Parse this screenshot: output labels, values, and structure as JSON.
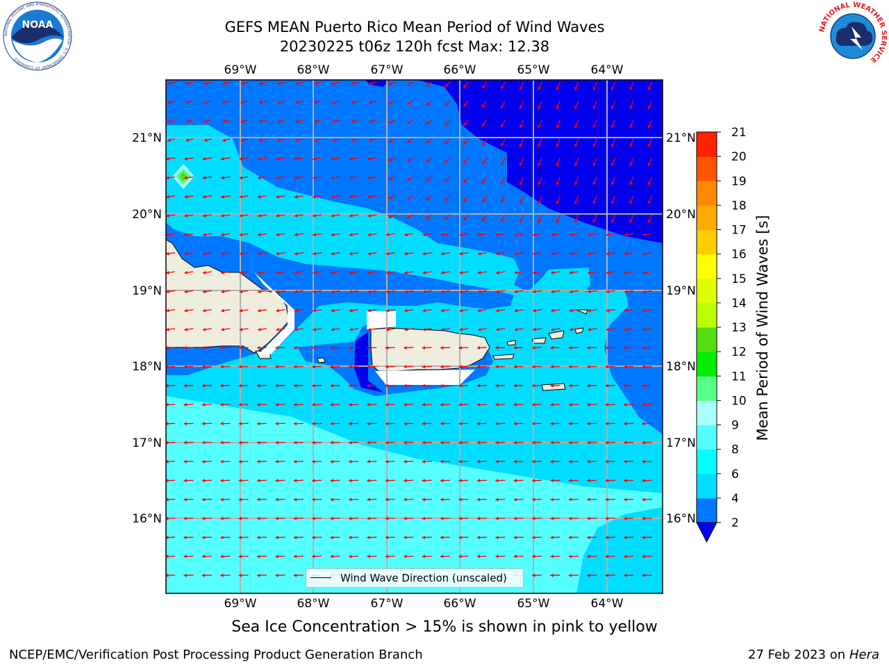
{
  "header": {
    "title_line1": "GEFS MEAN Puerto Rico Mean Period of Wind Waves",
    "title_line2": "20230225 t06z 120h fcst   Max: 12.38"
  },
  "logos": {
    "noaa_text": "NOAA",
    "noaa_ring_text": "NATIONAL OCEANIC AND ATMOSPHERIC ADMINISTRATION · U.S. DEPARTMENT OF COMMERCE",
    "nws_ring_text": "NATIONAL WEATHER SERVICE"
  },
  "map": {
    "lon_labels": [
      "69°W",
      "68°W",
      "67°W",
      "66°W",
      "65°W",
      "64°W"
    ],
    "lat_labels": [
      "21°N",
      "20°N",
      "19°N",
      "18°N",
      "17°N",
      "16°N"
    ],
    "legend_label": "Wind Wave Direction (unscaled)",
    "arrow_color": "#ff0000",
    "land_color": "#efedde",
    "gridline_color": "#b0b0b0"
  },
  "colorbar": {
    "title": "Mean Period of Wind Waves [s]",
    "ticks": [
      "2",
      "4",
      "6",
      "8",
      "9",
      "10",
      "11",
      "12",
      "13",
      "14",
      "15",
      "16",
      "17",
      "18",
      "19",
      "20",
      "21"
    ],
    "colors": [
      "#0000ee",
      "#0077ff",
      "#00ddff",
      "#00ffff",
      "#55ffff",
      "#aaffff",
      "#55ff88",
      "#00ee00",
      "#55dd11",
      "#bbff00",
      "#ddff00",
      "#ffff00",
      "#ffcc00",
      "#ffaa00",
      "#ff8800",
      "#ff5500",
      "#ff2200",
      "#ff0000"
    ]
  },
  "note": "Sea Ice Concentration > 15% is shown in pink to yellow",
  "footer": {
    "left": "NCEP/EMC/Verification Post Processing Product Generation Branch",
    "date": "27 Feb 2023 on",
    "machine": "Hera"
  }
}
